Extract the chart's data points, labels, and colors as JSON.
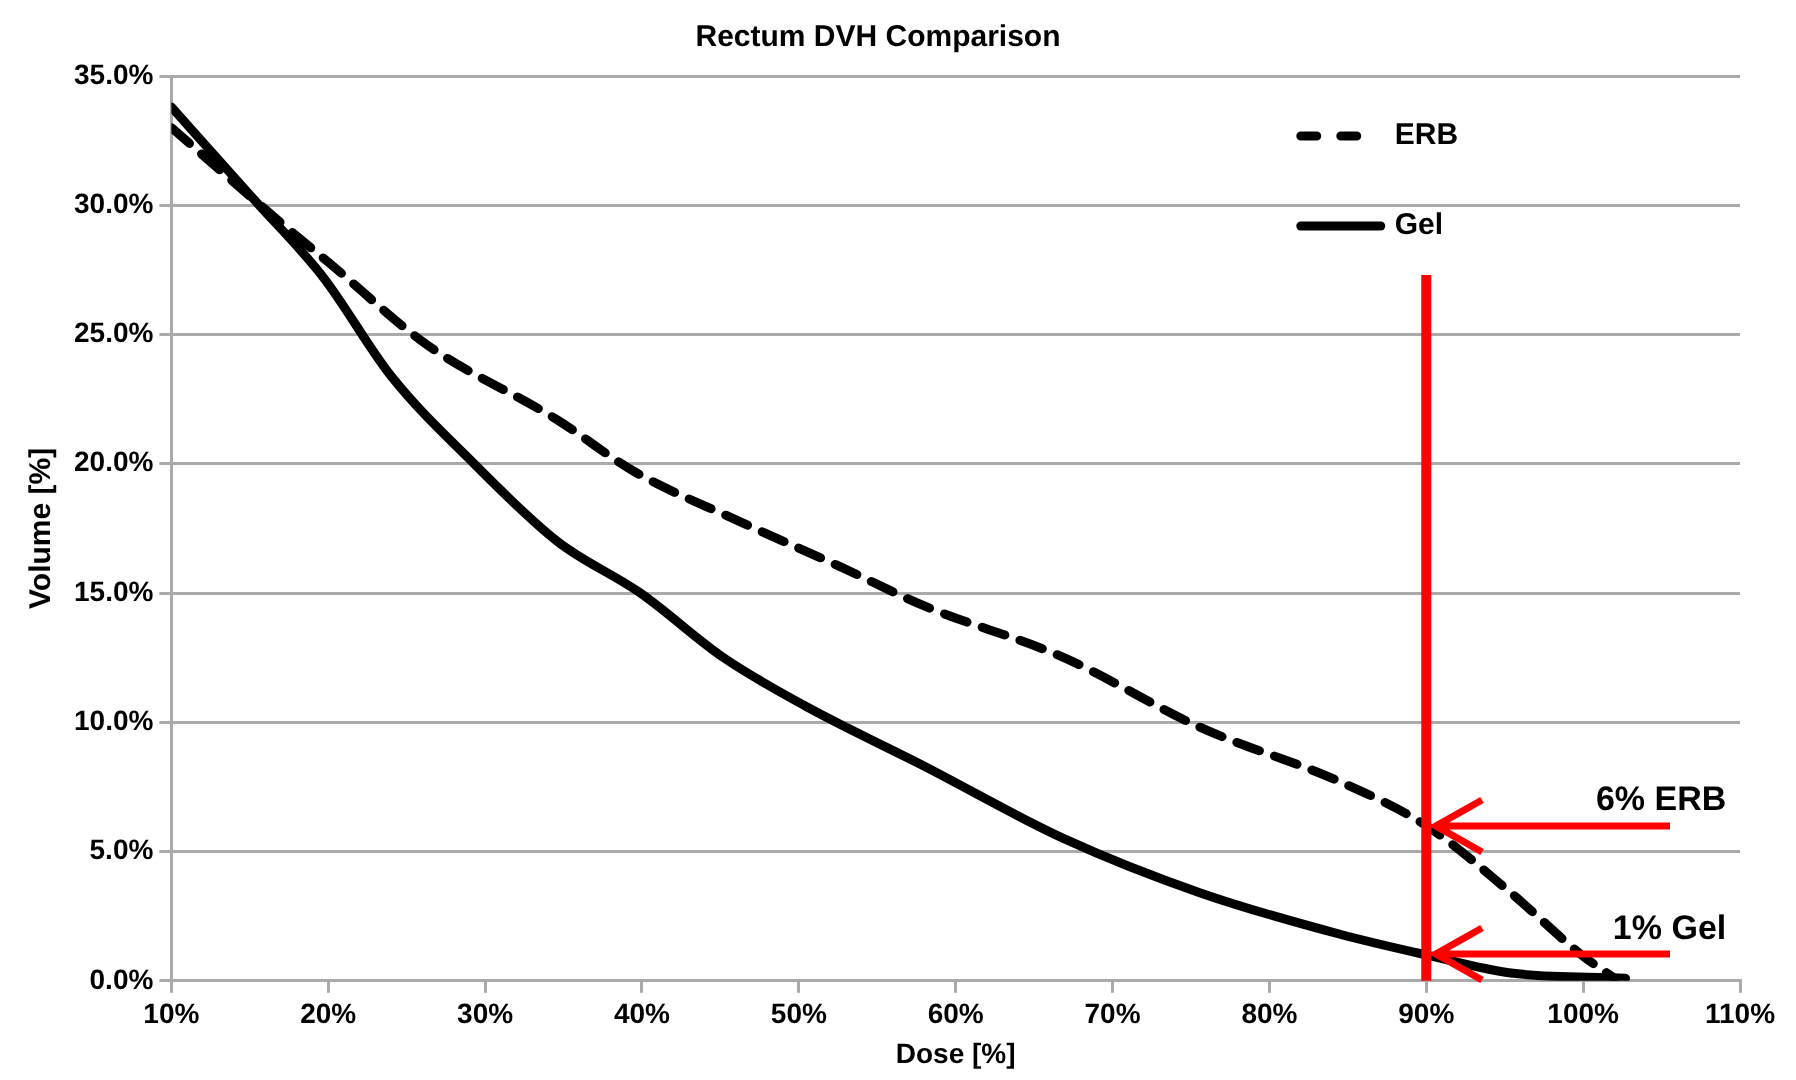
{
  "chart_data": {
    "type": "line",
    "title": "Rectum DVH Comparison",
    "xlabel": "Dose [%]",
    "ylabel": "Volume [%]",
    "series": [
      {
        "name": "ERB",
        "color": "#000000",
        "line_style": "dashed",
        "x": [
          10,
          15.3,
          17.4,
          20,
          26.3,
          34.6,
          39.5,
          46.1,
          52.7,
          58,
          66.9,
          75.6,
          84.5,
          90,
          95.4,
          99.9,
          102
        ],
        "values": [
          33.0,
          30.2,
          29.1,
          27.8,
          24.6,
          21.7,
          19.7,
          17.8,
          16.0,
          14.5,
          12.5,
          9.8,
          7.7,
          6,
          3.4,
          1.0,
          0.1
        ]
      },
      {
        "name": "Gel",
        "color": "#000000",
        "line_style": "solid",
        "x": [
          10,
          15.3,
          19.7,
          24,
          29.3,
          34.6,
          39.9,
          45.2,
          50.5,
          58,
          66.9,
          75.6,
          84.5,
          90,
          95.4,
          102.7
        ],
        "values": [
          33.8,
          30.2,
          27.2,
          23.4,
          20.0,
          17.0,
          15.0,
          12.5,
          10.6,
          8.3,
          5.5,
          3.4,
          1.8,
          1,
          0.3,
          0.1
        ]
      }
    ],
    "xlim": [
      10,
      110
    ],
    "xticks": [
      {
        "value": 10,
        "label": "10%"
      },
      {
        "value": 20,
        "label": "20%"
      },
      {
        "value": 30,
        "label": "30%"
      },
      {
        "value": 40,
        "label": "40%"
      },
      {
        "value": 50,
        "label": "50%"
      },
      {
        "value": 60,
        "label": "60%"
      },
      {
        "value": 70,
        "label": "70%"
      },
      {
        "value": 80,
        "label": "80%"
      },
      {
        "value": 90,
        "label": "90%"
      },
      {
        "value": 100,
        "label": "100%"
      },
      {
        "value": 110,
        "label": "110%"
      }
    ],
    "ylim": [
      0,
      35
    ],
    "yticks": [
      {
        "value": 0,
        "label": "0.0%"
      },
      {
        "value": 5,
        "label": "5.0%"
      },
      {
        "value": 10,
        "label": "10.0%"
      },
      {
        "value": 15,
        "label": "15.0%"
      },
      {
        "value": 20,
        "label": "20.0%"
      },
      {
        "value": 25,
        "label": "25.0%"
      },
      {
        "value": 30,
        "label": "30.0%"
      },
      {
        "value": 35,
        "label": "35.0%"
      }
    ],
    "grid": "y",
    "legend": "top right",
    "marker": "none",
    "ref_lines": [
      {
        "axis": "x",
        "value": 90,
        "color": "#ff0000"
      }
    ],
    "annotations": [
      {
        "text": "6% ERB",
        "x": 90,
        "y": 6
      },
      {
        "text": "1% Gel",
        "x": 90,
        "y": 1
      }
    ]
  }
}
